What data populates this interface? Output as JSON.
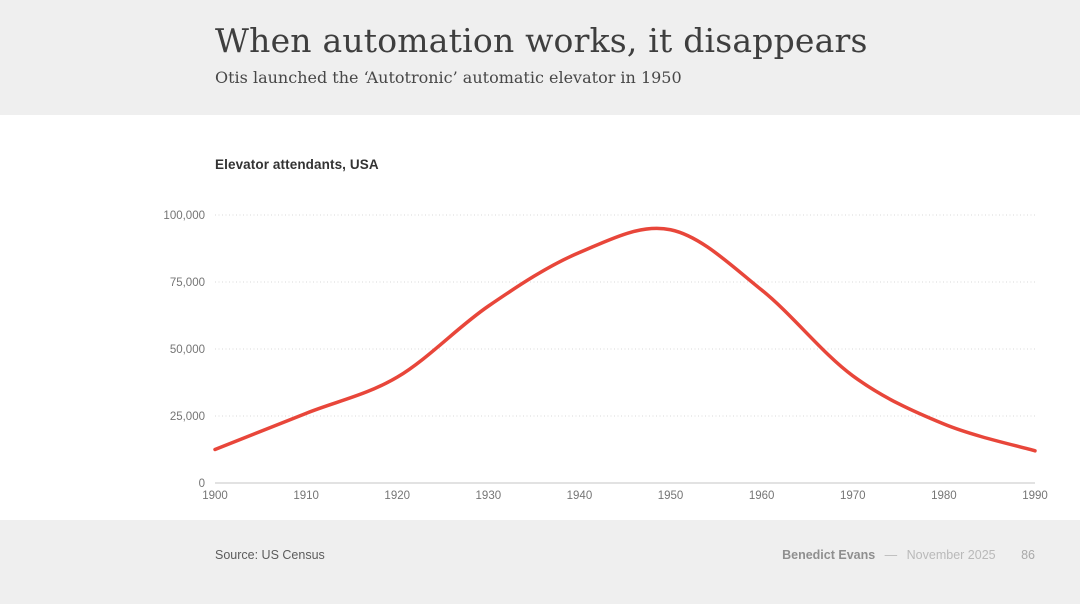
{
  "header": {
    "title": "When automation works, it disappears",
    "subtitle": "Otis launched the ‘Autotronic’ automatic elevator in 1950"
  },
  "chart": {
    "label": "Elevator attendants, USA"
  },
  "chart_data": {
    "type": "line",
    "title": "Elevator attendants, USA",
    "x": [
      1900,
      1910,
      1920,
      1930,
      1940,
      1950,
      1960,
      1970,
      1980,
      1990
    ],
    "values": [
      12500,
      26000,
      39500,
      66000,
      86000,
      94500,
      72000,
      40000,
      22000,
      12000
    ],
    "xlabel": "",
    "ylabel": "",
    "ylim": [
      0,
      100000
    ],
    "y_ticks": [
      0,
      25000,
      50000,
      75000,
      100000
    ],
    "y_tick_labels": [
      "0",
      "25,000",
      "50,000",
      "75,000",
      "100,000"
    ],
    "x_tick_labels": [
      "1900",
      "1910",
      "1920",
      "1930",
      "1940",
      "1950",
      "1960",
      "1970",
      "1980",
      "1990"
    ],
    "grid": "horizontal-dotted",
    "legend_position": "none",
    "line_color": "#e8463a",
    "peak_note": "peak ~94,500 around 1950"
  },
  "footer": {
    "source": "Source: US Census",
    "author": "Benedict Evans",
    "separator": "—",
    "date": "November 2025",
    "page_number": "86"
  },
  "colors": {
    "band_bg": "#efefef",
    "canvas_bg": "#ffffff",
    "accent_red": "#e8463a",
    "gridline": "#d9d9d9",
    "axis_line": "#c6c6c6",
    "axis_text": "#757575",
    "title_text": "#3e3e3e"
  }
}
